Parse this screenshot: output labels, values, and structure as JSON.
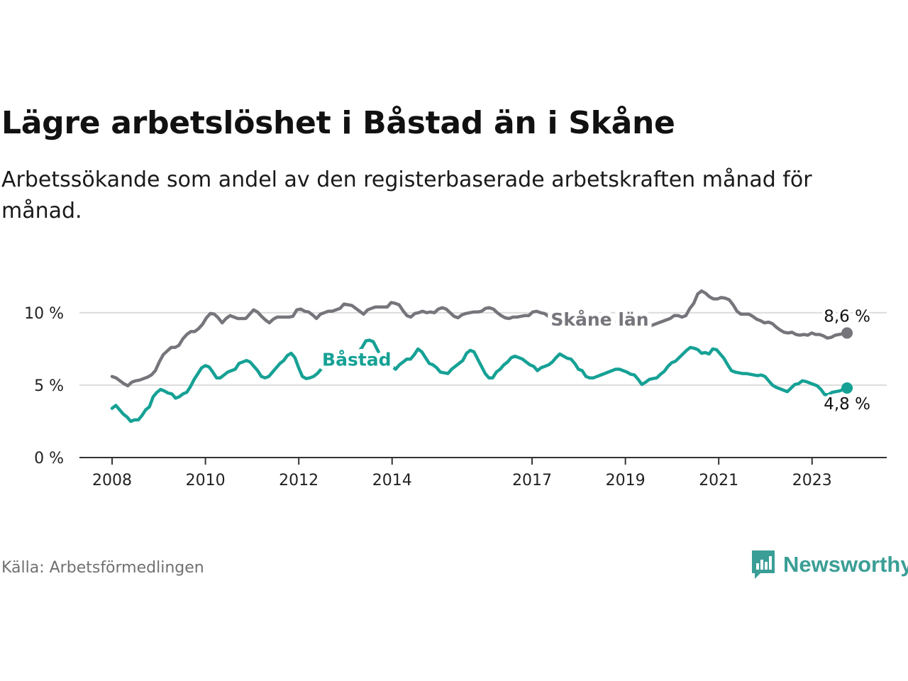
{
  "title": "Lägre arbetslöshet i Båstad än i Skåne",
  "subtitle": "Arbetssökande som andel av den registerbaserade arbetskraften månad för månad.",
  "source": "Källa: Arbetsförmedlingen",
  "brand": "Newsworthy",
  "colors": {
    "skane": "#76757b",
    "bastad": "#16a195",
    "grid": "#dcdcdc",
    "axis": "#333333",
    "brand": "#3a9e96"
  },
  "chart_data": {
    "type": "line",
    "title": "Lägre arbetslöshet i Båstad än i Skåne",
    "xlabel": "",
    "ylabel": "",
    "x_start": 2008.0,
    "x_end": 2023.75,
    "xlim": [
      2007.3,
      2024.6
    ],
    "ylim": [
      0,
      12
    ],
    "yticks": [
      0,
      5,
      10
    ],
    "ytick_labels": [
      "0 %",
      "5 %",
      "10 %"
    ],
    "xticks": [
      2008,
      2010,
      2012,
      2014,
      2017,
      2019,
      2021,
      2023
    ],
    "xtick_labels": [
      "2008",
      "2010",
      "2012",
      "2014",
      "2017",
      "2019",
      "2021",
      "2023"
    ],
    "grid": true,
    "series": [
      {
        "name": "Skåne län",
        "end_label": "8,6 %",
        "values": [
          5.6,
          5.5,
          5.3,
          5.1,
          4.95,
          5.2,
          5.3,
          5.35,
          5.45,
          5.55,
          5.7,
          6.0,
          6.6,
          7.1,
          7.35,
          7.6,
          7.6,
          7.75,
          8.2,
          8.5,
          8.7,
          8.7,
          8.9,
          9.2,
          9.65,
          9.95,
          9.9,
          9.65,
          9.3,
          9.6,
          9.8,
          9.7,
          9.6,
          9.6,
          9.6,
          9.9,
          10.2,
          10.05,
          9.75,
          9.5,
          9.3,
          9.55,
          9.7,
          9.7,
          9.7,
          9.7,
          9.75,
          10.2,
          10.25,
          10.1,
          10.05,
          9.85,
          9.6,
          9.9,
          10.0,
          10.1,
          10.1,
          10.2,
          10.3,
          10.6,
          10.55,
          10.5,
          10.3,
          10.1,
          9.9,
          10.2,
          10.3,
          10.4,
          10.4,
          10.4,
          10.4,
          10.7,
          10.65,
          10.55,
          10.15,
          9.8,
          9.7,
          9.95,
          10.0,
          10.1,
          10.0,
          10.05,
          10.0,
          10.25,
          10.35,
          10.25,
          10.0,
          9.75,
          9.65,
          9.85,
          9.95,
          10.0,
          10.05,
          10.05,
          10.1,
          10.3,
          10.35,
          10.25,
          10.0,
          9.8,
          9.65,
          9.6,
          9.7,
          9.7,
          9.75,
          9.8,
          9.8,
          10.05,
          10.1,
          10.0,
          9.95,
          9.75,
          9.5,
          9.45,
          9.4,
          9.5,
          9.5,
          9.5,
          9.55,
          9.6,
          9.65,
          9.7,
          9.6,
          9.5,
          9.4,
          9.3,
          9.3,
          9.35,
          9.4,
          9.4,
          9.45,
          9.45,
          9.5,
          9.5,
          9.4,
          9.3,
          9.2,
          9.1,
          9.2,
          9.3,
          9.4,
          9.5,
          9.6,
          9.8,
          9.8,
          9.7,
          9.8,
          10.3,
          10.65,
          11.3,
          11.5,
          11.35,
          11.1,
          10.95,
          10.95,
          11.05,
          11.0,
          10.9,
          10.55,
          10.1,
          9.9,
          9.9,
          9.9,
          9.75,
          9.55,
          9.45,
          9.3,
          9.35,
          9.25,
          9.0,
          8.8,
          8.65,
          8.6,
          8.65,
          8.5,
          8.45,
          8.5,
          8.45,
          8.6,
          8.5,
          8.5,
          8.4,
          8.25,
          8.3,
          8.45,
          8.5,
          8.55,
          8.6
        ]
      },
      {
        "name": "Båstad",
        "end_label": "4,8 %",
        "values": [
          3.4,
          3.6,
          3.3,
          3.0,
          2.8,
          2.5,
          2.6,
          2.6,
          2.9,
          3.3,
          3.5,
          4.2,
          4.5,
          4.7,
          4.6,
          4.45,
          4.4,
          4.1,
          4.2,
          4.4,
          4.5,
          4.9,
          5.4,
          5.8,
          6.2,
          6.35,
          6.25,
          5.9,
          5.5,
          5.5,
          5.7,
          5.9,
          6.0,
          6.1,
          6.5,
          6.6,
          6.7,
          6.6,
          6.3,
          6.0,
          5.6,
          5.5,
          5.6,
          5.9,
          6.2,
          6.5,
          6.7,
          7.05,
          7.2,
          6.9,
          6.2,
          5.6,
          5.45,
          5.5,
          5.6,
          5.8,
          6.1,
          6.3,
          6.6,
          6.9,
          7.2,
          7.5,
          7.3,
          7.0,
          6.8,
          7.0,
          7.3,
          7.6,
          8.05,
          8.1,
          8.0,
          7.5,
          7.0,
          6.6,
          6.5,
          6.3,
          6.1,
          6.4,
          6.6,
          6.8,
          6.8,
          7.1,
          7.5,
          7.3,
          6.9,
          6.5,
          6.4,
          6.2,
          5.9,
          5.85,
          5.8,
          6.1,
          6.3,
          6.5,
          6.7,
          7.2,
          7.4,
          7.3,
          6.8,
          6.3,
          5.8,
          5.5,
          5.5,
          5.9,
          6.1,
          6.4,
          6.6,
          6.9,
          7.0,
          6.9,
          6.8,
          6.6,
          6.4,
          6.3,
          6.0,
          6.2,
          6.3,
          6.4,
          6.6,
          6.9,
          7.15,
          7.0,
          6.85,
          6.8,
          6.5,
          6.1,
          6.0,
          5.6,
          5.5,
          5.5,
          5.6,
          5.7,
          5.8,
          5.9,
          6.0,
          6.1,
          6.1,
          6.0,
          5.9,
          5.75,
          5.7,
          5.4,
          5.05,
          5.2,
          5.4,
          5.45,
          5.5,
          5.75,
          5.95,
          6.3,
          6.55,
          6.65,
          6.9,
          7.15,
          7.4,
          7.6,
          7.55,
          7.45,
          7.2,
          7.25,
          7.15,
          7.5,
          7.45,
          7.15,
          6.85,
          6.4,
          6.0,
          5.9,
          5.85,
          5.8,
          5.8,
          5.75,
          5.7,
          5.65,
          5.7,
          5.6,
          5.3,
          5.0,
          4.85,
          4.75,
          4.65,
          4.55,
          4.8,
          5.05,
          5.1,
          5.3,
          5.25,
          5.15,
          5.05,
          4.95,
          4.7,
          4.35,
          4.35,
          4.5,
          4.55,
          4.6,
          4.7,
          4.8
        ]
      }
    ]
  }
}
